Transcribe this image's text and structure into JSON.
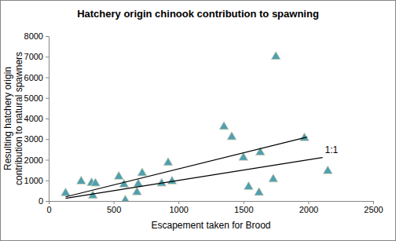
{
  "chart_data": {
    "type": "scatter",
    "title": "Hatchery origin chinook contribution to spawning",
    "xlabel": "Escapement taken for Brood",
    "ylabel": [
      "Resulting hatchery origin",
      "contribution to natural spawners"
    ],
    "xlim": [
      0,
      2500
    ],
    "xticks": [
      0,
      500,
      1000,
      1500,
      2000,
      2500
    ],
    "ylim": [
      0,
      8000
    ],
    "yticks": [
      0,
      1000,
      2000,
      3000,
      4000,
      5000,
      6000,
      7000,
      8000
    ],
    "grid": false,
    "series": [
      {
        "type": "scatter",
        "marker": "triangle",
        "color": "#4f9fb0",
        "x": [
          130,
          250,
          330,
          340,
          360,
          540,
          580,
          590,
          680,
          690,
          720,
          870,
          920,
          950,
          1350,
          1410,
          1500,
          1540,
          1620,
          1630,
          1730,
          1750,
          1970,
          2150
        ],
        "values": [
          380,
          950,
          870,
          250,
          850,
          1180,
          800,
          30,
          420,
          820,
          1350,
          850,
          1850,
          950,
          3600,
          3100,
          2100,
          680,
          400,
          2350,
          1050,
          7000,
          3050,
          1450
        ]
      },
      {
        "type": "line",
        "line_style": "solid",
        "color": "#000000",
        "x": [
          130,
          1990
        ],
        "values": [
          200,
          3100
        ]
      },
      {
        "type": "line",
        "line_style": "solid",
        "color": "#000000",
        "name": "1:1",
        "x": [
          130,
          2110
        ],
        "values": [
          130,
          2110
        ]
      }
    ]
  }
}
